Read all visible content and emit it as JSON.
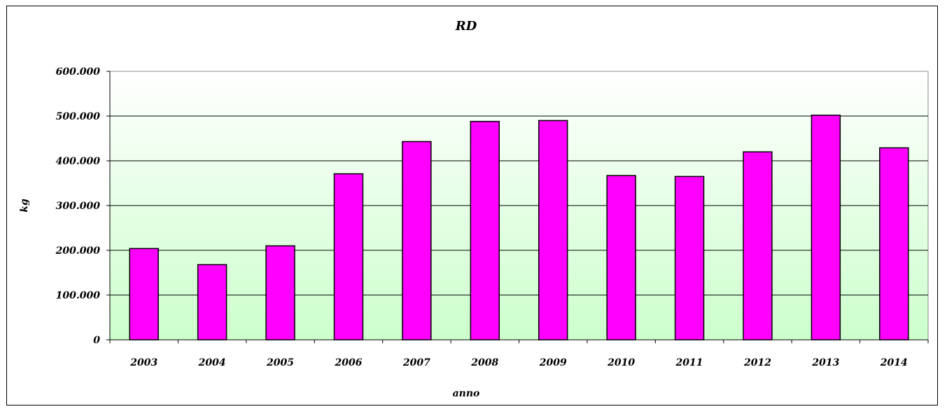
{
  "chart_data": {
    "type": "bar",
    "title": "RD",
    "xlabel": "anno",
    "ylabel": "kg",
    "categories": [
      "2003",
      "2004",
      "2005",
      "2006",
      "2007",
      "2008",
      "2009",
      "2010",
      "2011",
      "2012",
      "2013",
      "2014"
    ],
    "values": [
      204000,
      168000,
      210000,
      371000,
      443000,
      488000,
      490000,
      367000,
      365000,
      420000,
      502000,
      429000
    ],
    "ylim": [
      0,
      600000
    ],
    "yticks": [
      0,
      100000,
      200000,
      300000,
      400000,
      500000,
      600000
    ],
    "ytick_labels": [
      "0",
      "100.000",
      "200.000",
      "300.000",
      "400.000",
      "500.000",
      "600.000"
    ],
    "grid": true,
    "legend": "none",
    "colors": {
      "bar_fill": "#ff00ff",
      "bar_stroke": "#000000",
      "plot_bg_top": "#ffffff",
      "plot_bg_bottom": "#ccffcc",
      "gridline": "#000000"
    }
  }
}
